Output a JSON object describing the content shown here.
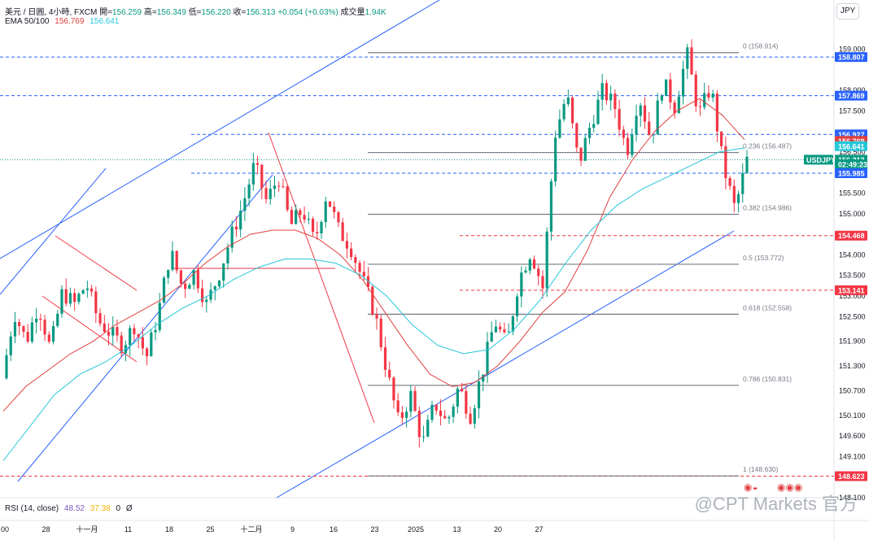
{
  "header": {
    "symbol_line": "美元 / 日圓, 4小時, FXCM",
    "open_label": "開=",
    "open_value": "156.259",
    "high_label": "高=",
    "high_value": "156.349",
    "low_label": "低=",
    "low_value": "156.220",
    "close_label": "收=",
    "close_value": "156.313",
    "change": "+0.054 (+0.03%)",
    "volume_label": "成交量",
    "volume_value": "1.94K",
    "ema_label": "EMA 50/100",
    "ema50_value": "156.769",
    "ema100_value": "156.641"
  },
  "currency_button": "JPY",
  "rsi": {
    "label": "RSI (14, close)",
    "v1": "48.52",
    "v2": "37.38",
    "v3": "0",
    "v4": "Ø"
  },
  "watermark": "@CPT Markets 官方",
  "watermark_icons": {
    "a": "◉◒",
    "b": "◉◉◉"
  },
  "colors": {
    "up": "#089981",
    "down": "#f23645",
    "ema50": "#e0403f",
    "ema100": "#26c6da",
    "trend": "#2962ff",
    "dashed_blue": "#2962ff",
    "dashed_red": "#f23645",
    "fib": "#787b86"
  },
  "chart_data": {
    "type": "candlestick",
    "symbol": "USDJPY",
    "timeframe": "4小時",
    "ylim": [
      148.1,
      159.6
    ],
    "price_ticks": [
      "159.000",
      "158.000",
      "157.500",
      "156.500",
      "155.500",
      "155.000",
      "154.000",
      "153.500",
      "153.000",
      "152.500",
      "151.900",
      "151.300",
      "150.700",
      "150.100",
      "149.600",
      "149.100",
      "148.100"
    ],
    "x_ticks": [
      "00",
      "28",
      "十一月",
      "11",
      "18",
      "25",
      "十二月",
      "9",
      "16",
      "23",
      "2025",
      "13",
      "20",
      "27"
    ],
    "price_path": [
      151.0,
      152.6,
      151.9,
      152.8,
      151.7,
      153.1,
      152.8,
      153.3,
      152.4,
      152.1,
      151.8,
      152.3,
      151.5,
      152.6,
      154.1,
      153.2,
      153.6,
      152.8,
      153.5,
      154.4,
      155.2,
      156.2,
      155.3,
      155.9,
      154.7,
      155.1,
      154.3,
      155.5,
      154.6,
      154.2,
      153.4,
      152.6,
      151.2,
      149.9,
      150.6,
      149.4,
      150.4,
      149.9,
      150.8,
      150.1,
      151.2,
      152.4,
      151.8,
      153.4,
      154.1,
      153.2,
      156.9,
      157.9,
      156.2,
      157.2,
      158.0,
      157.6,
      156.5,
      157.9,
      156.8,
      158.2,
      157.6,
      158.9,
      157.4,
      158.1,
      156.2,
      155.1,
      156.3
    ],
    "ema50": [
      150.2,
      150.8,
      151.2,
      151.6,
      151.9,
      152.3,
      152.6,
      152.9,
      153.3,
      153.8,
      154.2,
      154.5,
      154.6,
      154.6,
      154.4,
      154.0,
      153.4,
      152.6,
      151.8,
      151.1,
      150.8,
      150.9,
      151.3,
      151.9,
      152.6,
      153.1,
      154.1,
      155.4,
      156.3,
      157.0,
      157.5,
      157.8,
      157.4,
      156.8
    ],
    "ema100": [
      149.0,
      149.8,
      150.6,
      151.1,
      151.4,
      151.8,
      152.3,
      152.7,
      153.0,
      153.4,
      153.7,
      153.9,
      153.9,
      153.8,
      153.5,
      153.0,
      152.3,
      151.8,
      151.6,
      151.7,
      152.2,
      152.9,
      153.8,
      154.6,
      155.2,
      155.6,
      155.9,
      156.2,
      156.5,
      156.6
    ],
    "fib_levels": [
      {
        "label": "0 (158.914)",
        "price": 158.914
      },
      {
        "label": "0.236 (156.487)",
        "price": 156.487
      },
      {
        "label": "0.382 (154.986)",
        "price": 154.986
      },
      {
        "label": "0.5 (153.772)",
        "price": 153.772
      },
      {
        "label": "0.618 (152.558)",
        "price": 152.558
      },
      {
        "label": "0.786 (150.831)",
        "price": 150.831
      },
      {
        "label": "1 (148.630)",
        "price": 148.63
      }
    ],
    "horizontal_lines": [
      {
        "price": 158.807,
        "color": "blue"
      },
      {
        "price": 157.869,
        "color": "blue"
      },
      {
        "price": 156.927,
        "color": "blue"
      },
      {
        "price": 155.985,
        "color": "blue"
      },
      {
        "price": 154.468,
        "color": "red"
      },
      {
        "price": 153.141,
        "color": "red"
      },
      {
        "price": 148.623,
        "color": "red"
      }
    ],
    "price_badges": [
      {
        "label": "158.807",
        "price": 158.807,
        "bg": "#2962ff"
      },
      {
        "label": "157.869",
        "price": 157.869,
        "bg": "#2962ff"
      },
      {
        "label": "156.927",
        "price": 156.927,
        "bg": "#2962ff"
      },
      {
        "label": "156.769",
        "price": 156.769,
        "bg": "#e0403f"
      },
      {
        "label": "156.641",
        "price": 156.641,
        "bg": "#26c6da"
      },
      {
        "label": "156.313",
        "price": 156.313,
        "bg": "#089981"
      },
      {
        "label": "02:49:23",
        "price": 156.2,
        "bg": "#089981"
      },
      {
        "label": "155.985",
        "price": 155.985,
        "bg": "#2962ff"
      },
      {
        "label": "154.468",
        "price": 154.468,
        "bg": "#f23645"
      },
      {
        "label": "153.141",
        "price": 153.141,
        "bg": "#f23645"
      },
      {
        "label": "148.623",
        "price": 148.623,
        "bg": "#f23645"
      }
    ],
    "last_price_tag": "USDJPY"
  }
}
